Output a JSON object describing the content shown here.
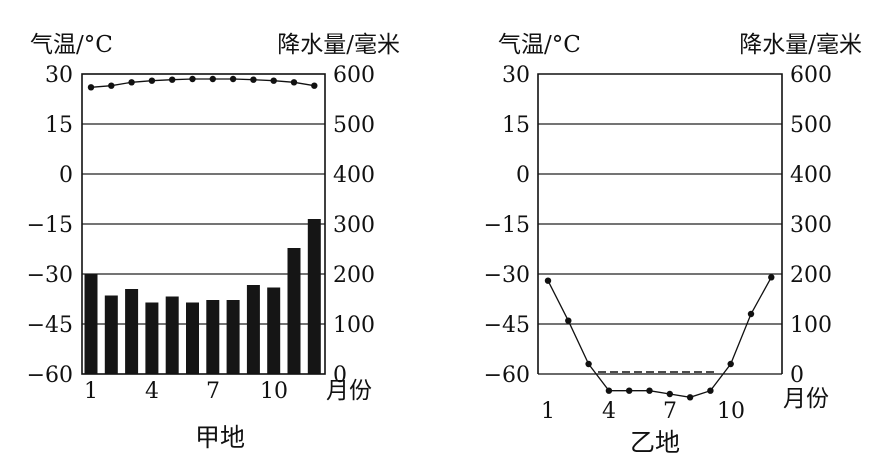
{
  "chart_data": [
    {
      "type": "bar+line",
      "caption": "甲地",
      "temp_axis_label": "气温/°C",
      "precip_axis_label": "降水量/毫米",
      "month_unit_label": "月份",
      "temp_ylim": [
        -60,
        30
      ],
      "temp_ticks": [
        "30",
        "15",
        "0",
        "-15",
        "-30",
        "-45",
        "-60"
      ],
      "precip_ylim": [
        0,
        600
      ],
      "precip_ticks": [
        "600",
        "500",
        "400",
        "300",
        "200",
        "100",
        "0"
      ],
      "x_ticks": [
        "1",
        "4",
        "7",
        "10"
      ],
      "months": [
        1,
        2,
        3,
        4,
        5,
        6,
        7,
        8,
        9,
        10,
        11,
        12
      ],
      "temperature": [
        26,
        26.5,
        27.5,
        28,
        28.3,
        28.5,
        28.5,
        28.5,
        28.3,
        28,
        27.5,
        26.5
      ],
      "precipitation": [
        200,
        157,
        170,
        143,
        155,
        143,
        148,
        148,
        178,
        173,
        252,
        310
      ],
      "grid": true
    },
    {
      "type": "line",
      "caption": "乙地",
      "temp_axis_label": "气温/°C",
      "precip_axis_label": "降水量/毫米",
      "month_unit_label": "月份",
      "temp_ylim": [
        -60,
        30
      ],
      "temp_ticks": [
        "30",
        "15",
        "0",
        "-15",
        "-30",
        "-45",
        "-60"
      ],
      "precip_ylim": [
        0,
        600
      ],
      "precip_ticks": [
        "600",
        "500",
        "400",
        "300",
        "200",
        "100",
        "0"
      ],
      "x_ticks": [
        "1",
        "4",
        "7",
        "10"
      ],
      "months": [
        1,
        2,
        3,
        4,
        5,
        6,
        7,
        8,
        9,
        10,
        11,
        12
      ],
      "temperature": [
        -32,
        -44,
        -57,
        -65,
        -65,
        -65,
        -66,
        -67,
        -65,
        -57,
        -42,
        -31
      ],
      "precipitation": [
        0,
        0,
        0,
        0,
        0,
        0,
        0,
        0,
        0,
        0,
        0,
        0
      ],
      "grid": true
    }
  ]
}
